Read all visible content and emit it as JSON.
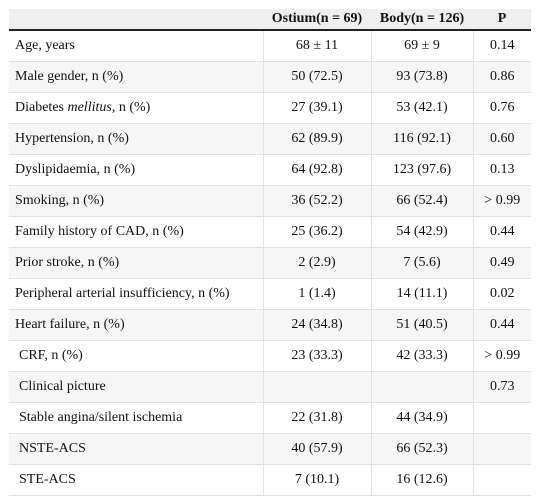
{
  "table": {
    "headers": [
      "",
      "Ostium(n = 69)",
      "Body(n = 126)",
      "P"
    ],
    "rows": [
      {
        "label": "Age, years",
        "ostium": "68 ± 11",
        "body": "69 ± 9",
        "p": "0.14"
      },
      {
        "label": "Male gender, n (%)",
        "ostium": "50 (72.5)",
        "body": "93 (73.8)",
        "p": "0.86"
      },
      {
        "label_pre": "Diabetes ",
        "label_em": "mellitus",
        "label_post": ", n (%)",
        "ostium": "27 (39.1)",
        "body": "53 (42.1)",
        "p": "0.76"
      },
      {
        "label": "Hypertension, n (%)",
        "ostium": "62 (89.9)",
        "body": "116 (92.1)",
        "p": "0.60"
      },
      {
        "label": "Dyslipidaemia, n (%)",
        "ostium": "64 (92.8)",
        "body": "123 (97.6)",
        "p": "0.13"
      },
      {
        "label": "Smoking, n (%)",
        "ostium": "36 (52.2)",
        "body": "66 (52.4)",
        "p": "> 0.99"
      },
      {
        "label": "Family history of CAD, n (%)",
        "ostium": "25 (36.2)",
        "body": "54 (42.9)",
        "p": "0.44"
      },
      {
        "label": "Prior stroke, n (%)",
        "ostium": "2 (2.9)",
        "body": "7 (5.6)",
        "p": "0.49"
      },
      {
        "label": "Peripheral arterial insufficiency, n (%)",
        "ostium": "1 (1.4)",
        "body": "14 (11.1)",
        "p": "0.02"
      },
      {
        "label": "Heart failure, n (%)",
        "ostium": "24 (34.8)",
        "body": "51 (40.5)",
        "p": "0.44"
      },
      {
        "label": "CRF, n (%)",
        "ostium": "23 (33.3)",
        "body": "42 (33.3)",
        "p": "> 0.99"
      },
      {
        "label": "Clinical picture",
        "ostium": "",
        "body": "",
        "p": "0.73"
      },
      {
        "label": "Stable angina/silent ischemia",
        "ostium": "22 (31.8)",
        "body": "44 (34.9)",
        "p": ""
      },
      {
        "label": "NSTE-ACS",
        "ostium": "40 (57.9)",
        "body": "66 (52.3)",
        "p": ""
      },
      {
        "label": "STE-ACS",
        "ostium": "7 (10.1)",
        "body": "16 (12.6)",
        "p": ""
      }
    ]
  }
}
